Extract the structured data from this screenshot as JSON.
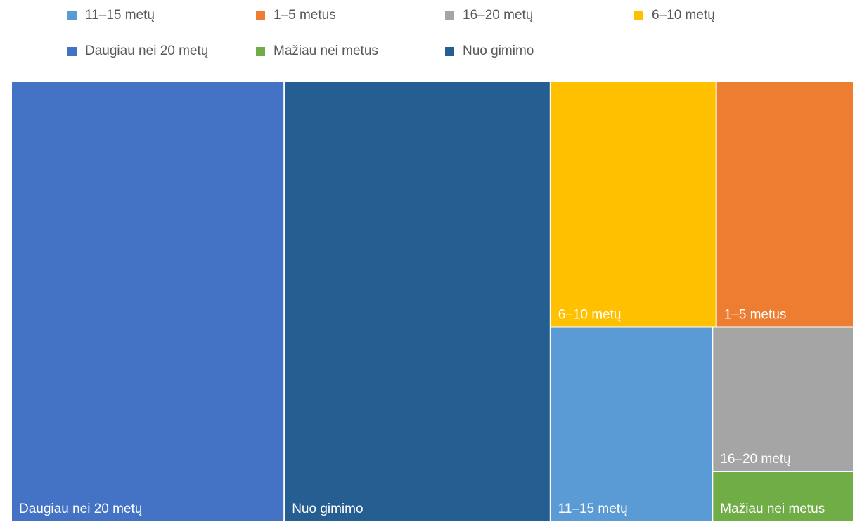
{
  "chart_data": {
    "type": "treemap",
    "legend_position": "top",
    "legend": [
      {
        "name": "11–15 metų",
        "color": "#5B9BD5"
      },
      {
        "name": "1–5 metus",
        "color": "#ED7D31"
      },
      {
        "name": "16–20 metų",
        "color": "#A5A5A5"
      },
      {
        "name": "6–10 metų",
        "color": "#FFC000"
      },
      {
        "name": "Daugiau nei 20 metų",
        "color": "#4472C4"
      },
      {
        "name": "Mažiau nei metus",
        "color": "#70AD47"
      },
      {
        "name": "Nuo gimimo",
        "color": "#255E91"
      }
    ],
    "tiles": [
      {
        "name": "Daugiau nei 20 metų",
        "value": 32.4,
        "color": "#4472C4"
      },
      {
        "name": "Nuo gimimo",
        "value": 31.6,
        "color": "#255E91"
      },
      {
        "name": "6–10 metų",
        "value": 11.0,
        "color": "#FFC000"
      },
      {
        "name": "1–5 metus",
        "value": 9.1,
        "color": "#ED7D31"
      },
      {
        "name": "11–15 metų",
        "value": 8.5,
        "color": "#5B9BD5"
      },
      {
        "name": "16–20 metų",
        "value": 5.5,
        "color": "#A5A5A5"
      },
      {
        "name": "Mažiau nei metus",
        "value": 1.9,
        "color": "#70AD47"
      }
    ]
  }
}
